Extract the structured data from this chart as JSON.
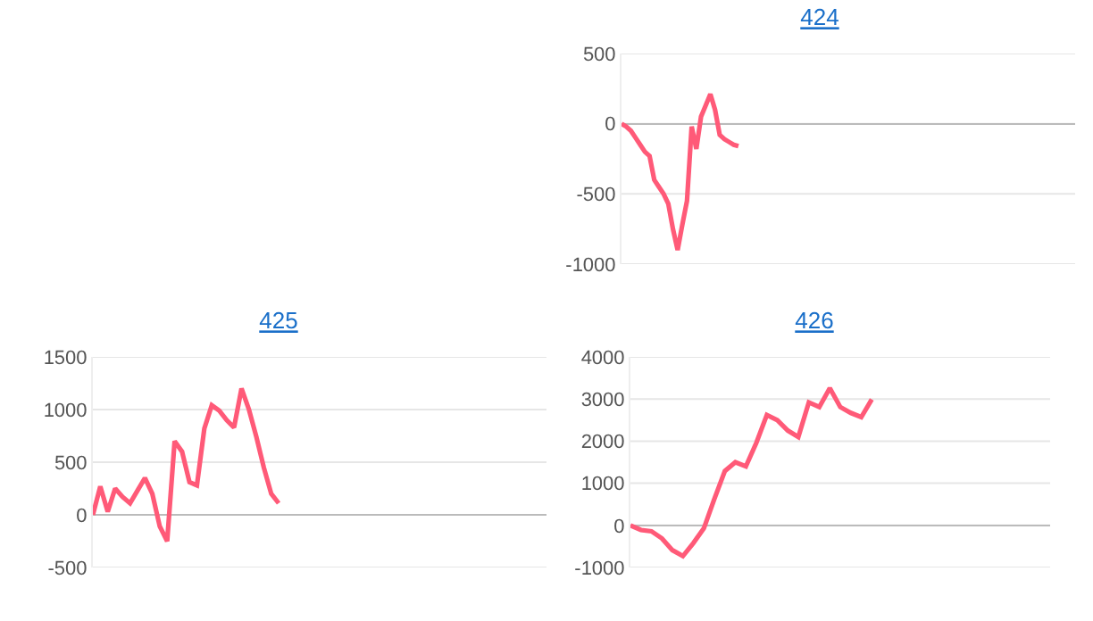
{
  "chart_data": [
    {
      "type": "line",
      "title": "424",
      "categories": [
        null,
        null,
        null,
        null,
        null,
        null,
        null,
        null,
        null,
        null,
        null,
        null,
        null,
        null,
        null,
        null,
        null,
        null,
        null,
        null,
        null,
        null,
        null,
        null,
        null,
        null,
        null,
        null,
        null,
        null,
        null,
        null,
        null,
        null,
        null,
        null,
        null,
        null,
        null,
        null,
        null,
        null,
        null,
        null,
        null,
        null,
        null,
        null,
        null,
        null,
        null,
        null,
        null,
        null,
        null,
        null,
        null,
        null,
        null,
        null,
        null,
        null,
        null,
        null,
        null,
        null,
        null,
        null,
        null,
        null,
        null,
        null,
        null,
        null,
        null,
        null,
        null,
        null,
        null,
        null,
        null,
        null,
        null,
        null,
        null,
        null,
        null,
        null,
        null,
        null,
        null,
        null,
        null,
        null,
        null,
        null,
        null,
        null
      ],
      "series": [
        {
          "color": "#ff5a78",
          "values": [
            0,
            -20,
            -50,
            -100,
            -150,
            -200,
            -230,
            -400,
            -450,
            -500,
            -570,
            -750,
            -900,
            -720,
            -550,
            -20,
            -180,
            50,
            130,
            210,
            100,
            -80,
            -110,
            -130,
            -150,
            -160,
            null,
            null,
            null,
            null,
            null,
            null,
            null,
            null,
            null,
            null,
            null,
            null,
            null,
            null,
            null,
            null,
            null,
            null,
            null,
            null,
            null,
            null,
            null,
            null,
            null,
            null,
            null,
            null,
            null,
            null,
            null,
            null,
            null,
            null,
            null,
            null,
            null,
            null,
            null,
            null,
            null,
            null,
            null,
            null,
            null,
            null,
            null,
            null,
            null,
            null,
            null,
            null,
            null,
            null,
            null,
            null,
            null,
            null,
            null,
            null,
            null,
            null,
            null,
            null,
            null,
            null,
            null,
            null,
            null,
            null,
            null,
            null
          ]
        }
      ],
      "ylim": [
        -1000,
        500
      ],
      "yticks": [
        -1000,
        -500,
        0,
        500
      ],
      "grid": "y",
      "tick_labels": "y",
      "marker": "none",
      "line_style": "solid"
    },
    {
      "type": "line",
      "title": "425",
      "categories": [
        null,
        null,
        null,
        null,
        null,
        null,
        null,
        null,
        null,
        null,
        null,
        null,
        null,
        null,
        null,
        null,
        null,
        null,
        null,
        null,
        null,
        null,
        null,
        null,
        null,
        null,
        null,
        null,
        null,
        null,
        null,
        null,
        null,
        null,
        null,
        null,
        null,
        null,
        null,
        null,
        null,
        null,
        null,
        null,
        null,
        null,
        null,
        null,
        null,
        null,
        null,
        null,
        null,
        null,
        null,
        null,
        null,
        null,
        null,
        null,
        null,
        null,
        null
      ],
      "series": [
        {
          "color": "#ff5a78",
          "values": [
            0,
            270,
            30,
            250,
            170,
            110,
            230,
            350,
            200,
            -110,
            -250,
            700,
            600,
            310,
            280,
            820,
            1040,
            990,
            900,
            830,
            1200,
            1000,
            740,
            450,
            200,
            110,
            null,
            null,
            null,
            null,
            null,
            null,
            null,
            null,
            null,
            null,
            null,
            null,
            null,
            null,
            null,
            null,
            null,
            null,
            null,
            null,
            null,
            null,
            null,
            null,
            null,
            null,
            null,
            null,
            null,
            null,
            null,
            null,
            null,
            null,
            null,
            null,
            null
          ]
        }
      ],
      "ylim": [
        -500,
        1500
      ],
      "yticks": [
        -500,
        0,
        500,
        1000,
        1500
      ],
      "grid": "y",
      "tick_labels": "y",
      "marker": "none",
      "line_style": "solid"
    },
    {
      "type": "line",
      "title": "426",
      "categories": [
        null,
        null,
        null,
        null,
        null,
        null,
        null,
        null,
        null,
        null,
        null,
        null,
        null,
        null,
        null,
        null,
        null,
        null,
        null,
        null,
        null,
        null,
        null,
        null,
        null,
        null,
        null,
        null,
        null,
        null,
        null,
        null,
        null,
        null,
        null,
        null,
        null,
        null,
        null,
        null,
        null
      ],
      "series": [
        {
          "color": "#ff5a78",
          "values": [
            0,
            -110,
            -140,
            -310,
            -590,
            -730,
            -420,
            -70,
            630,
            1290,
            1500,
            1400,
            1960,
            2620,
            2500,
            2250,
            2100,
            2920,
            2810,
            3260,
            2810,
            2670,
            2570,
            2990,
            null,
            null,
            null,
            null,
            null,
            null,
            null,
            null,
            null,
            null,
            null,
            null,
            null,
            null,
            null,
            null,
            null
          ]
        }
      ],
      "ylim": [
        -1000,
        4000
      ],
      "yticks": [
        -1000,
        0,
        1000,
        2000,
        3000,
        4000
      ],
      "grid": "y",
      "tick_labels": "y",
      "marker": "none",
      "line_style": "solid"
    }
  ]
}
